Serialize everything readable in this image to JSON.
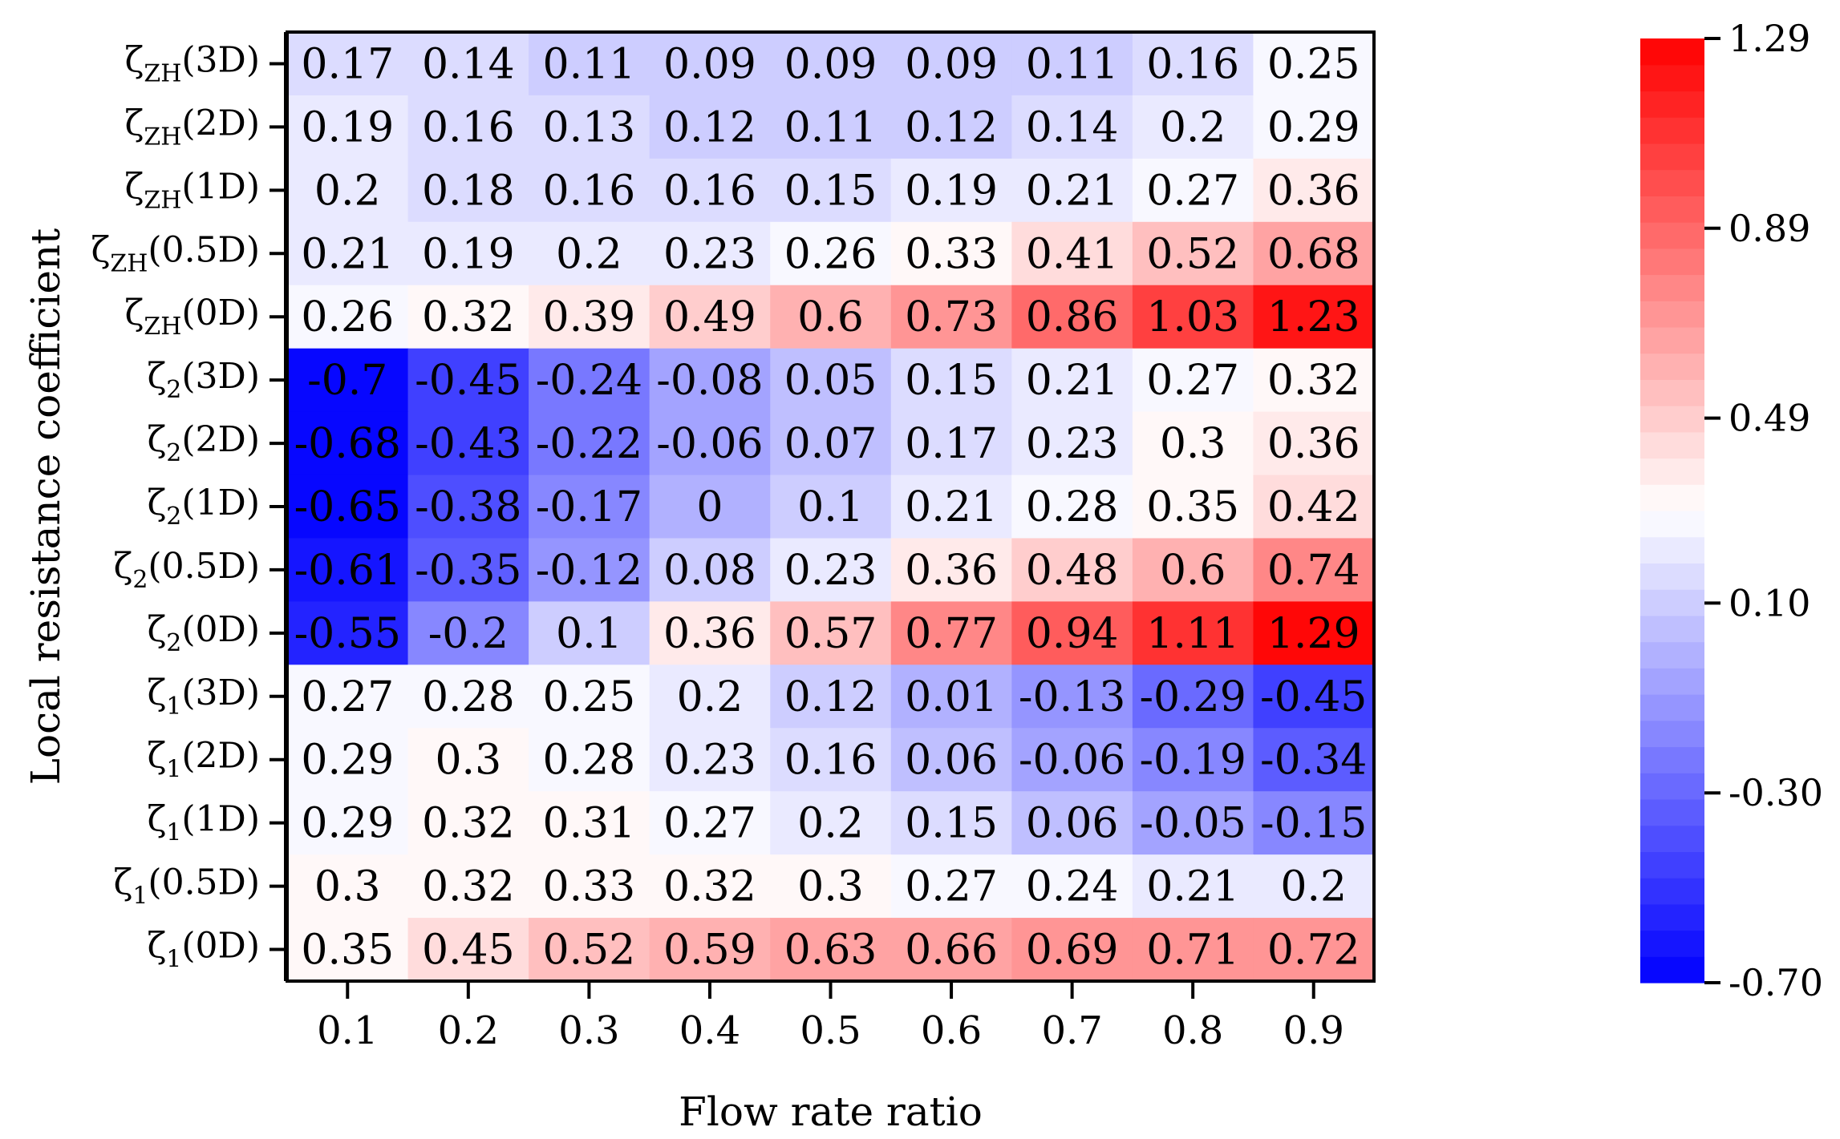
{
  "chart_data": {
    "type": "heatmap",
    "xlabel": "Flow rate ratio",
    "ylabel": "Local resistance coefficient",
    "x_categories": [
      "0.1",
      "0.2",
      "0.3",
      "0.4",
      "0.5",
      "0.6",
      "0.7",
      "0.8",
      "0.9"
    ],
    "y_categories": [
      {
        "base": "ζ",
        "sub": "ZH",
        "suffix": "(3D)"
      },
      {
        "base": "ζ",
        "sub": "ZH",
        "suffix": "(2D)"
      },
      {
        "base": "ζ",
        "sub": "ZH",
        "suffix": "(1D)"
      },
      {
        "base": "ζ",
        "sub": "ZH",
        "suffix": "(0.5D)"
      },
      {
        "base": "ζ",
        "sub": "ZH",
        "suffix": "(0D)"
      },
      {
        "base": "ζ",
        "sub": "2",
        "suffix": "(3D)"
      },
      {
        "base": "ζ",
        "sub": "2",
        "suffix": "(2D)"
      },
      {
        "base": "ζ",
        "sub": "2",
        "suffix": "(1D)"
      },
      {
        "base": "ζ",
        "sub": "2",
        "suffix": "(0.5D)"
      },
      {
        "base": "ζ",
        "sub": "2",
        "suffix": "(0D)"
      },
      {
        "base": "ζ",
        "sub": "1",
        "suffix": "(3D)"
      },
      {
        "base": "ζ",
        "sub": "1",
        "suffix": "(2D)"
      },
      {
        "base": "ζ",
        "sub": "1",
        "suffix": "(1D)"
      },
      {
        "base": "ζ",
        "sub": "1",
        "suffix": "(0.5D)"
      },
      {
        "base": "ζ",
        "sub": "1",
        "suffix": "(0D)"
      }
    ],
    "values": [
      [
        "0.17",
        "0.14",
        "0.11",
        "0.09",
        "0.09",
        "0.09",
        "0.11",
        "0.16",
        "0.25"
      ],
      [
        "0.19",
        "0.16",
        "0.13",
        "0.12",
        "0.11",
        "0.12",
        "0.14",
        "0.2",
        "0.29"
      ],
      [
        "0.2",
        "0.18",
        "0.16",
        "0.16",
        "0.15",
        "0.19",
        "0.21",
        "0.27",
        "0.36"
      ],
      [
        "0.21",
        "0.19",
        "0.2",
        "0.23",
        "0.26",
        "0.33",
        "0.41",
        "0.52",
        "0.68"
      ],
      [
        "0.26",
        "0.32",
        "0.39",
        "0.49",
        "0.6",
        "0.73",
        "0.86",
        "1.03",
        "1.23"
      ],
      [
        "-0.7",
        "-0.45",
        "-0.24",
        "-0.08",
        "0.05",
        "0.15",
        "0.21",
        "0.27",
        "0.32"
      ],
      [
        "-0.68",
        "-0.43",
        "-0.22",
        "-0.06",
        "0.07",
        "0.17",
        "0.23",
        "0.3",
        "0.36"
      ],
      [
        "-0.65",
        "-0.38",
        "-0.17",
        "0",
        "0.1",
        "0.21",
        "0.28",
        "0.35",
        "0.42"
      ],
      [
        "-0.61",
        "-0.35",
        "-0.12",
        "0.08",
        "0.23",
        "0.36",
        "0.48",
        "0.6",
        "0.74"
      ],
      [
        "-0.55",
        "-0.2",
        "0.1",
        "0.36",
        "0.57",
        "0.77",
        "0.94",
        "1.11",
        "1.29"
      ],
      [
        "0.27",
        "0.28",
        "0.25",
        "0.2",
        "0.12",
        "0.01",
        "-0.13",
        "-0.29",
        "-0.45"
      ],
      [
        "0.29",
        "0.3",
        "0.28",
        "0.23",
        "0.16",
        "0.06",
        "-0.06",
        "-0.19",
        "-0.34"
      ],
      [
        "0.29",
        "0.32",
        "0.31",
        "0.27",
        "0.2",
        "0.15",
        "0.06",
        "-0.05",
        "-0.15"
      ],
      [
        "0.3",
        "0.32",
        "0.33",
        "0.32",
        "0.3",
        "0.27",
        "0.24",
        "0.21",
        "0.2"
      ],
      [
        "0.35",
        "0.45",
        "0.52",
        "0.59",
        "0.63",
        "0.66",
        "0.69",
        "0.71",
        "0.72"
      ]
    ],
    "colorbar": {
      "min": -0.7,
      "max": 1.29,
      "ticks": [
        "1.29",
        "0.89",
        "0.49",
        "0.10",
        "-0.30",
        "-0.70"
      ],
      "levels": 36,
      "colors": {
        "low": "#0000ff",
        "mid": "#ffffff",
        "high": "#ff0000"
      }
    }
  }
}
